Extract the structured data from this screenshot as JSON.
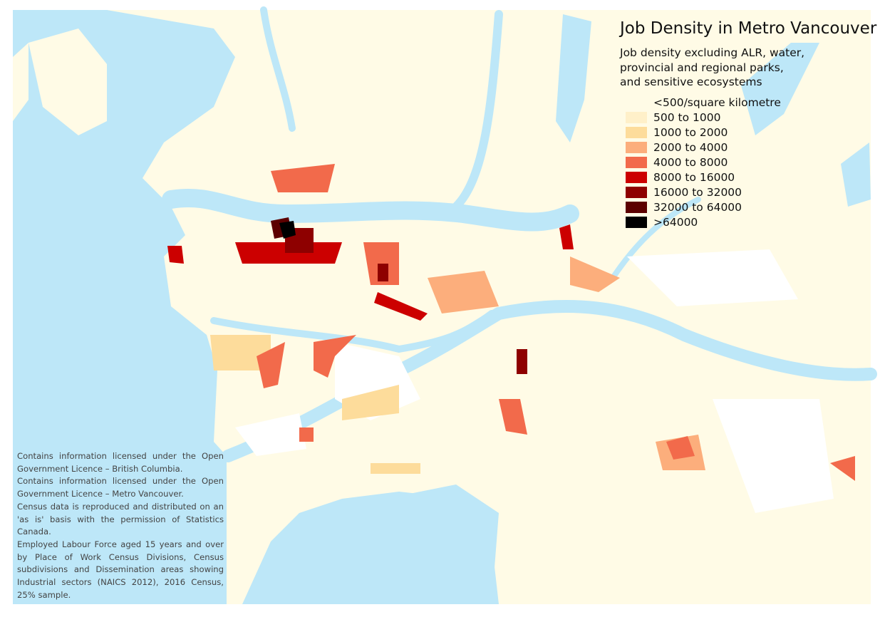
{
  "title": "Job Density in Metro Vancouver",
  "subtitle": [
    "Job density excluding ALR, water,",
    "provincial and regional parks,",
    "and sensitive ecosystems"
  ],
  "legend": [
    {
      "label": "<500/square kilometre",
      "color": "#fffbe6"
    },
    {
      "label": "500 to 1000",
      "color": "#fff0c9"
    },
    {
      "label": "1000 to 2000",
      "color": "#fddc9b"
    },
    {
      "label": "2000 to 4000",
      "color": "#fcae7c"
    },
    {
      "label": "4000 to 8000",
      "color": "#f26a4b"
    },
    {
      "label": "8000 to 16000",
      "color": "#cc0000"
    },
    {
      "label": "16000 to 32000",
      "color": "#8e0000"
    },
    {
      "label": "32000 to 64000",
      "color": "#5c0000"
    },
    {
      "label": ">64000",
      "color": "#000000"
    }
  ],
  "attribution": [
    "Contains information licensed under the Open Government Licence – British Columbia.",
    "Contains information licensed under the Open Government Licence – Metro Vancouver.",
    "Census data is reproduced and distributed on an 'as is' basis with the permission of Statistics Canada.",
    "Employed Labour Force aged 15 years and over by Place of Work Census Divisions, Census subdivisions and Dissemination areas showing Industrial sectors (NAICS 2012), 2016 Census, 25% sample."
  ]
}
